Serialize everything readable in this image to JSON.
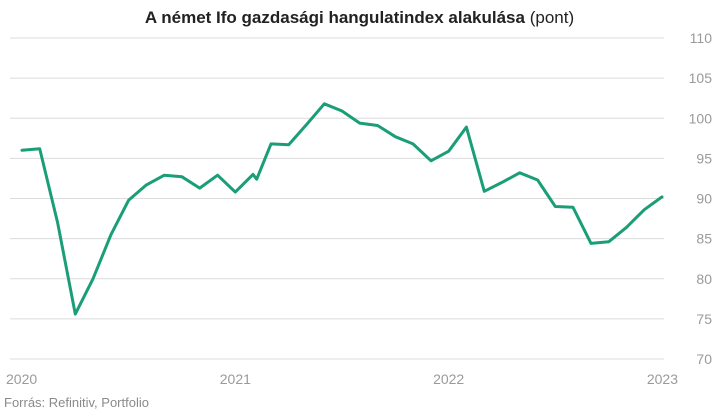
{
  "chart_data": {
    "type": "line",
    "title": "A német Ifo gazdasági hangulatindex alakulása",
    "title_unit": "(pont)",
    "xlabel": "",
    "ylabel": "",
    "source": "Forrás: Refinitiv, Portfolio",
    "ylim": [
      70,
      110
    ],
    "yticks": [
      70,
      75,
      80,
      85,
      90,
      95,
      100,
      105,
      110
    ],
    "y_axis_position": "right",
    "grid": true,
    "xlim": [
      2020.0,
      2023.0
    ],
    "xticks": [
      {
        "value": 2020.0,
        "label": "2020"
      },
      {
        "value": 2021.0,
        "label": "2021"
      },
      {
        "value": 2022.0,
        "label": "2022"
      },
      {
        "value": 2023.0,
        "label": "2023"
      }
    ],
    "line_color": "#1a9e77",
    "series": [
      {
        "x": [
          2020.0,
          2020.083,
          2020.167,
          2020.25,
          2020.333,
          2020.417,
          2020.5,
          2020.583,
          2020.667,
          2020.75,
          2020.833,
          2020.917,
          2021.0,
          2021.083,
          2021.1,
          2021.167,
          2021.25,
          2021.333,
          2021.417,
          2021.5,
          2021.583,
          2021.667,
          2021.75,
          2021.833,
          2021.917,
          2022.0,
          2022.083,
          2022.167,
          2022.25,
          2022.333,
          2022.417,
          2022.5,
          2022.583,
          2022.667,
          2022.75,
          2022.833,
          2022.917,
          2023.0
        ],
        "values": [
          96.0,
          96.2,
          87.0,
          75.6,
          80.0,
          85.5,
          89.8,
          91.7,
          92.9,
          92.7,
          91.3,
          92.9,
          90.8,
          93.0,
          92.4,
          96.8,
          96.7,
          99.2,
          101.8,
          100.9,
          99.4,
          99.1,
          97.7,
          96.8,
          94.7,
          95.9,
          98.9,
          90.9,
          92.0,
          93.2,
          92.3,
          89.0,
          88.9,
          84.4,
          84.6,
          86.4,
          88.6,
          90.2
        ]
      }
    ]
  }
}
